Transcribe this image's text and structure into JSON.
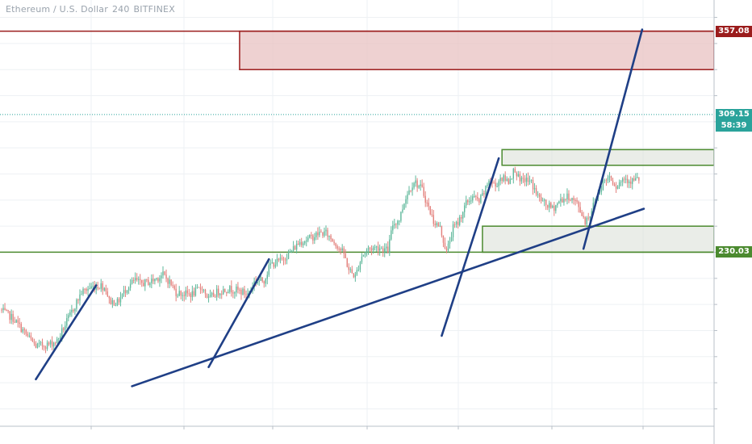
{
  "header": {
    "symbol": "Ethereum / U.S. Dollar",
    "interval": "240",
    "exchange": "BITFINEX"
  },
  "price_tags": {
    "resistance": "357.08",
    "last_price": "309.15",
    "countdown": "58:39",
    "support": "230.03"
  },
  "colors": {
    "background": "#ffffff",
    "grid": "#eef1f4",
    "candle_up": "#5fb89b",
    "candle_down": "#e3807c",
    "resistance": "#9b1c1c",
    "resistance_zone_fill": "#e8c2c2",
    "support": "#4b8a2f",
    "support_zone_fill": "#d9dfd6",
    "trendline": "#1f3f86",
    "last_price": "#2aa39b"
  },
  "chart_data": {
    "type": "candlestick",
    "interval_minutes": 240,
    "ylim": [
      130,
      375
    ],
    "grid": true,
    "close_path": [
      [
        0,
        197
      ],
      [
        8,
        192
      ],
      [
        15,
        184
      ],
      [
        22,
        176
      ],
      [
        30,
        177
      ],
      [
        35,
        179
      ],
      [
        42,
        192
      ],
      [
        50,
        207
      ],
      [
        56,
        210
      ],
      [
        62,
        211
      ],
      [
        65,
        209
      ],
      [
        67,
        202
      ],
      [
        72,
        201
      ],
      [
        78,
        210
      ],
      [
        83,
        214
      ],
      [
        86,
        212
      ],
      [
        92,
        213
      ],
      [
        100,
        217
      ],
      [
        104,
        213
      ],
      [
        108,
        207
      ],
      [
        113,
        206
      ],
      [
        118,
        206
      ],
      [
        124,
        210
      ],
      [
        128,
        203
      ],
      [
        133,
        207
      ],
      [
        140,
        209
      ],
      [
        146,
        208
      ],
      [
        152,
        206
      ],
      [
        156,
        213
      ],
      [
        162,
        214
      ],
      [
        166,
        223
      ],
      [
        172,
        225
      ],
      [
        178,
        230
      ],
      [
        184,
        236
      ],
      [
        190,
        238
      ],
      [
        196,
        241
      ],
      [
        200,
        241
      ],
      [
        206,
        235
      ],
      [
        211,
        229
      ],
      [
        214,
        220
      ],
      [
        218,
        216
      ],
      [
        222,
        228
      ],
      [
        226,
        232
      ],
      [
        232,
        233
      ],
      [
        238,
        231
      ],
      [
        241,
        246
      ],
      [
        245,
        249
      ],
      [
        249,
        262
      ],
      [
        254,
        271
      ],
      [
        259,
        266
      ],
      [
        262,
        258
      ],
      [
        266,
        248
      ],
      [
        270,
        244
      ],
      [
        274,
        230
      ],
      [
        278,
        244
      ],
      [
        281,
        247
      ],
      [
        286,
        258
      ],
      [
        290,
        262
      ],
      [
        294,
        259
      ],
      [
        298,
        266
      ],
      [
        300,
        272
      ],
      [
        304,
        268
      ],
      [
        307,
        273
      ],
      [
        312,
        271
      ],
      [
        316,
        278
      ],
      [
        319,
        270
      ],
      [
        322,
        272
      ],
      [
        326,
        270
      ],
      [
        330,
        262
      ],
      [
        334,
        258
      ],
      [
        339,
        255
      ],
      [
        344,
        260
      ],
      [
        349,
        262
      ],
      [
        354,
        258
      ],
      [
        359,
        248
      ],
      [
        362,
        252
      ],
      [
        366,
        262
      ],
      [
        370,
        270
      ],
      [
        374,
        274
      ],
      [
        378,
        268
      ],
      [
        383,
        273
      ],
      [
        387,
        271
      ],
      [
        392,
        272
      ]
    ],
    "price_levels": [
      {
        "label": "357.08",
        "value": 357.08
      },
      {
        "label": "230.03",
        "value": 230.03
      }
    ],
    "last_price": 309.15,
    "resistance_zone": {
      "start_bar": 147,
      "low": 335,
      "high": 357.08
    },
    "support_zones": [
      {
        "start_bar": 308,
        "low": 280,
        "high": 289
      },
      {
        "start_bar": 296,
        "low": 230.03,
        "high": 245
      }
    ],
    "trendlines": [
      {
        "from": [
          81,
          153
        ],
        "to": [
          395,
          255
        ]
      },
      {
        "from": [
          22,
          157
        ],
        "to": [
          59,
          211
        ]
      },
      {
        "from": [
          128,
          164
        ],
        "to": [
          165,
          226
        ]
      },
      {
        "from": [
          271,
          182
        ],
        "to": [
          306,
          284
        ]
      },
      {
        "from": [
          358,
          232
        ],
        "to": [
          394,
          358
        ]
      }
    ]
  }
}
